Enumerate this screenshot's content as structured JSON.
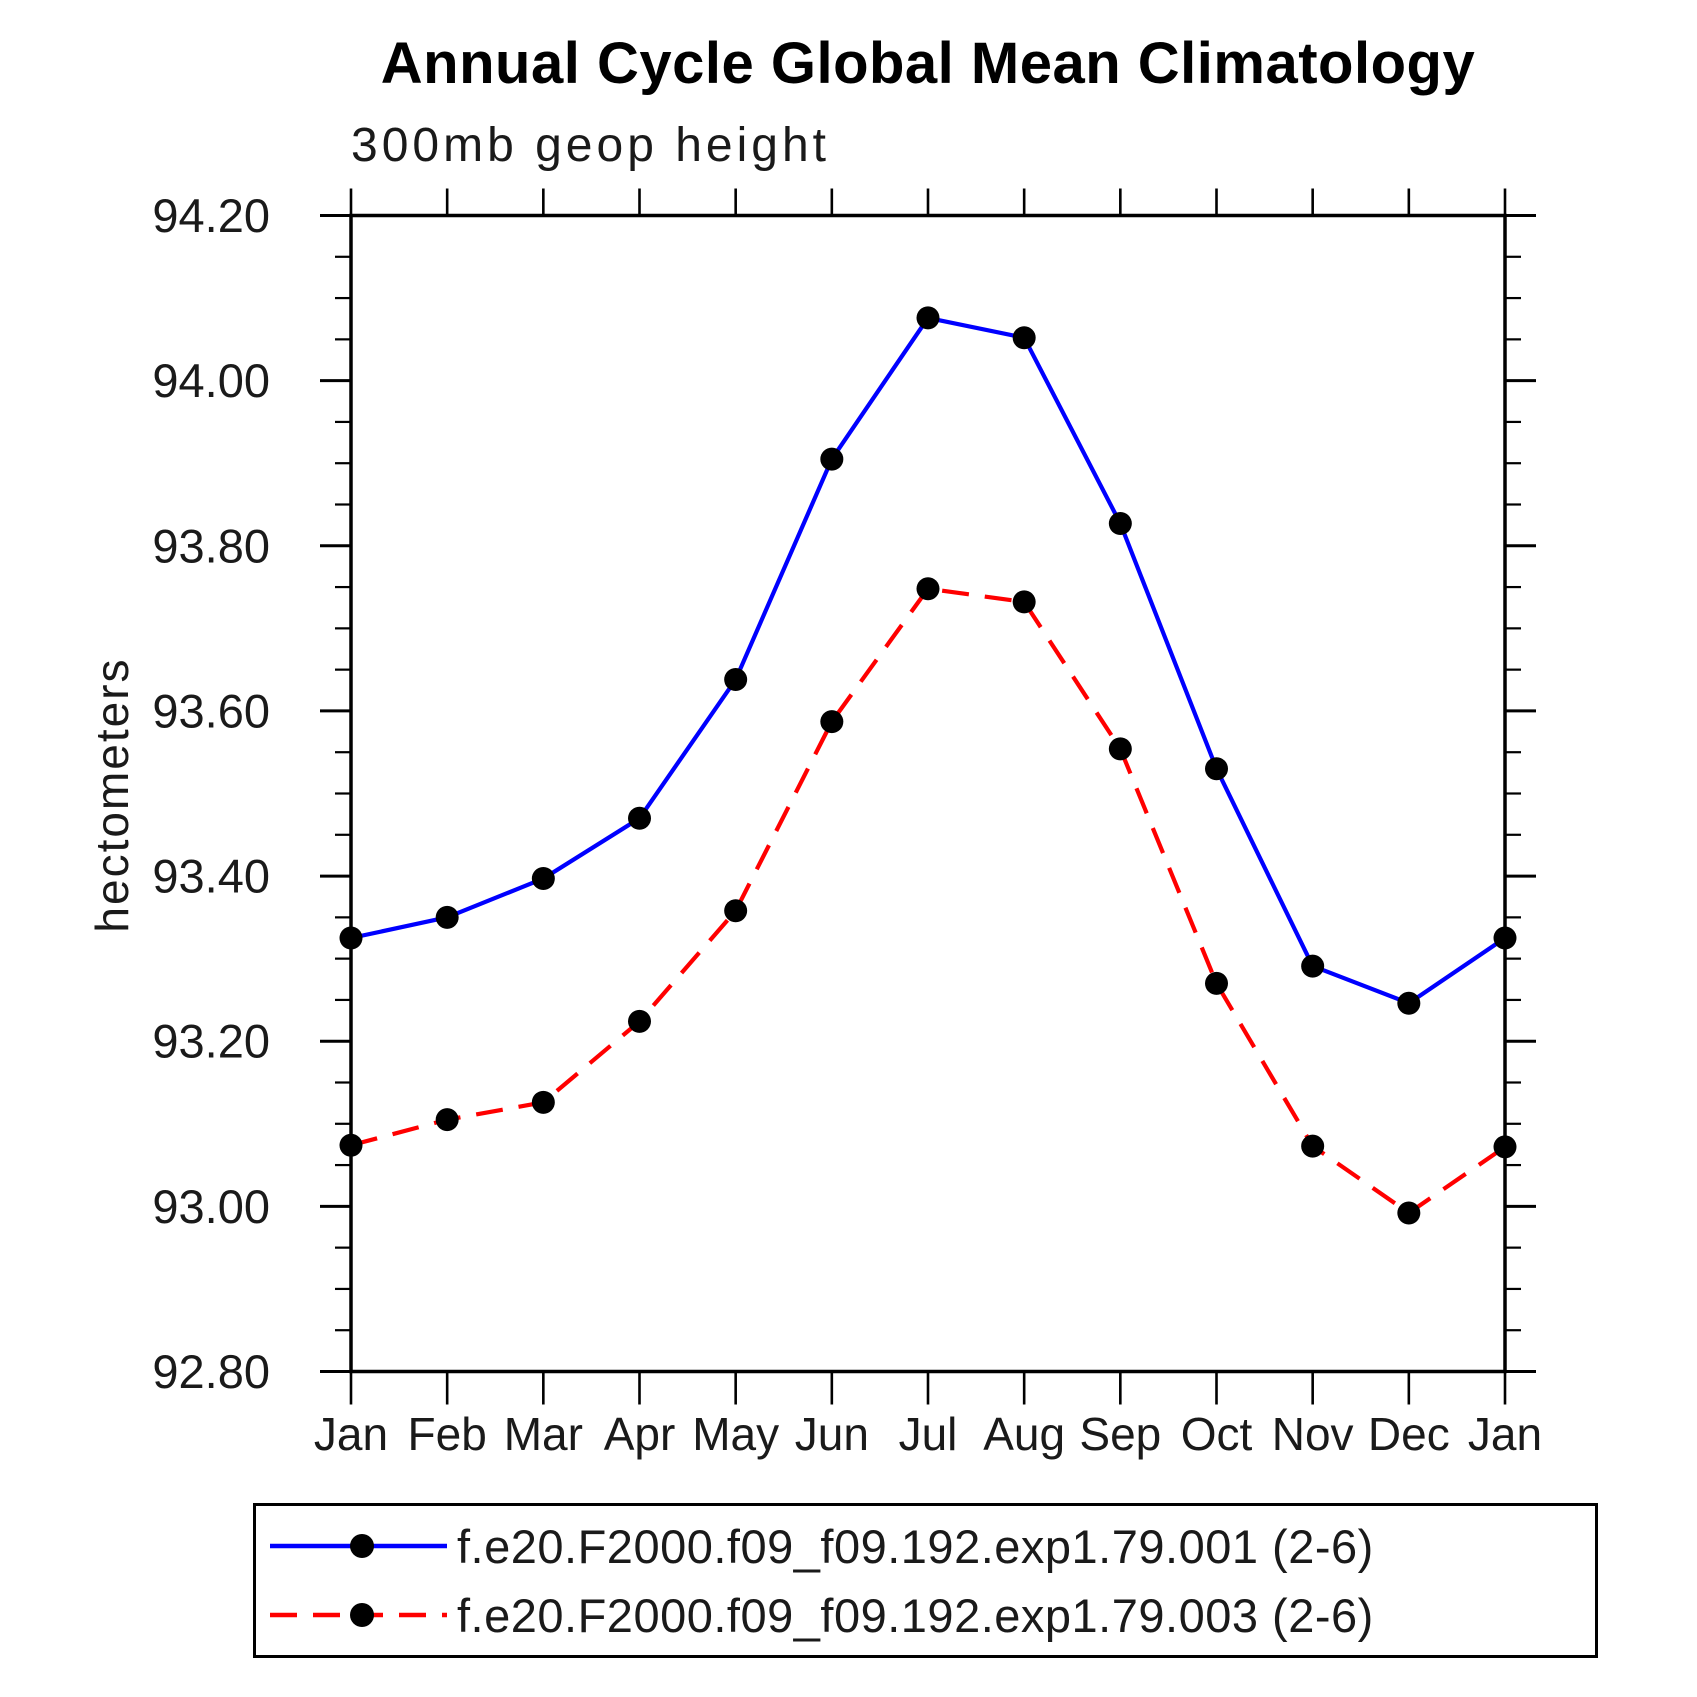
{
  "page": {
    "title": "Annual Cycle Global Mean Climatology",
    "subtitle": "300mb geop height"
  },
  "axes": {
    "ylabel": "hectometers",
    "y_tick_labels": [
      "92.80",
      "93.00",
      "93.20",
      "93.40",
      "93.60",
      "93.80",
      "94.00",
      "94.20"
    ],
    "x_tick_labels": [
      "Jan",
      "Feb",
      "Mar",
      "Apr",
      "May",
      "Jun",
      "Jul",
      "Aug",
      "Sep",
      "Oct",
      "Nov",
      "Dec",
      "Jan"
    ]
  },
  "legend": {
    "entries": [
      {
        "label": "f.e20.F2000.f09_f09.192.exp1.79.001 (2-6)",
        "color": "#0000ff",
        "style": "solid"
      },
      {
        "label": "f.e20.F2000.f09_f09.192.exp1.79.003 (2-6)",
        "color": "#ff0000",
        "style": "dashed"
      }
    ]
  },
  "chart_data": {
    "type": "line",
    "title": "Annual Cycle Global Mean Climatology",
    "subtitle": "300mb geop height",
    "xlabel": "",
    "ylabel": "hectometers",
    "x_categories": [
      "Jan",
      "Feb",
      "Mar",
      "Apr",
      "May",
      "Jun",
      "Jul",
      "Aug",
      "Sep",
      "Oct",
      "Nov",
      "Dec",
      "Jan"
    ],
    "ylim": [
      92.8,
      94.2
    ],
    "y_major_step": 0.2,
    "y_minor_step": 0.05,
    "grid": false,
    "legend_position": "below",
    "marker": "filled-circle",
    "marker_color": "#000000",
    "series": [
      {
        "name": "f.e20.F2000.f09_f09.192.exp1.79.001 (2-6)",
        "color": "#0000ff",
        "style": "solid",
        "values": [
          93.325,
          93.35,
          93.397,
          93.47,
          93.638,
          93.905,
          94.076,
          94.052,
          93.827,
          93.53,
          93.291,
          93.246,
          93.325
        ]
      },
      {
        "name": "f.e20.F2000.f09_f09.192.exp1.79.003 (2-6)",
        "color": "#ff0000",
        "style": "dashed",
        "values": [
          93.074,
          93.105,
          93.126,
          93.224,
          93.358,
          93.587,
          93.748,
          93.732,
          93.554,
          93.27,
          93.073,
          92.992,
          93.072
        ]
      }
    ]
  }
}
